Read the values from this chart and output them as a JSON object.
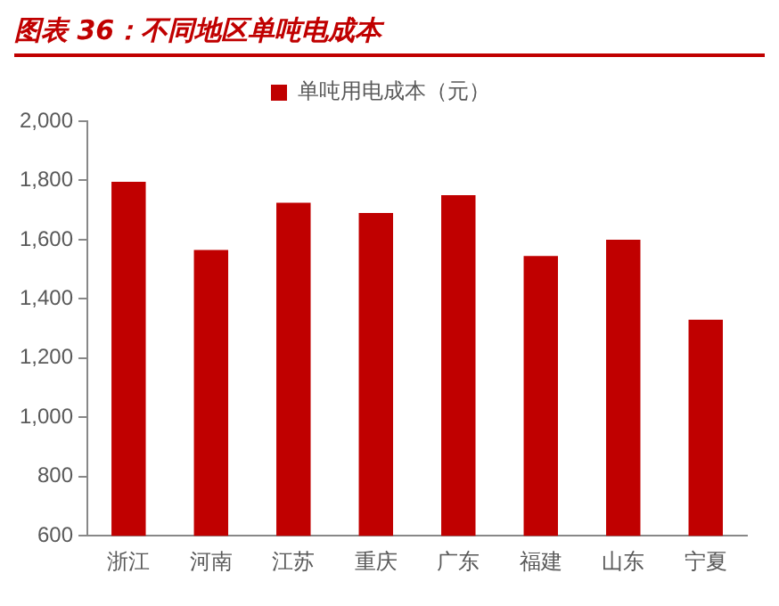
{
  "chart_data": {
    "type": "bar",
    "title": "图表 36：不同地区单吨电成本",
    "categories": [
      "浙江",
      "河南",
      "江苏",
      "重庆",
      "广东",
      "福建",
      "山东",
      "宁夏"
    ],
    "series": [
      {
        "name": "单吨用电成本（元）",
        "color": "#c00000",
        "values": [
          1795,
          1565,
          1725,
          1690,
          1750,
          1545,
          1600,
          1330
        ]
      }
    ],
    "ylim": [
      600,
      2000
    ],
    "yticks": [
      {
        "value": 600,
        "label": "600"
      },
      {
        "value": 800,
        "label": "800"
      },
      {
        "value": 1000,
        "label": "1,000"
      },
      {
        "value": 1200,
        "label": "1,200"
      },
      {
        "value": 1400,
        "label": "1,400"
      },
      {
        "value": 1600,
        "label": "1,600"
      },
      {
        "value": 1800,
        "label": "1,800"
      },
      {
        "value": 2000,
        "label": "2,000"
      }
    ],
    "grid": false,
    "legend": "top"
  }
}
